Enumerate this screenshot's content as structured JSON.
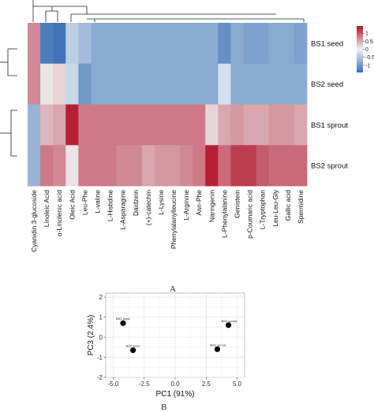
{
  "panel_labels": {
    "a": "A",
    "b": "B"
  },
  "chart_data": [
    {
      "type": "heatmap",
      "rows": [
        "BS1 seed",
        "BS2 seed",
        "BS1 sprout",
        "BS2 sprout"
      ],
      "columns": [
        "Cyanidin 3-glucoside",
        "Linoleic Acid",
        "α-Linolenic acid",
        "Oleic Acid",
        "Leu-Phe",
        "L-valine",
        "L-Histidine",
        "L-Asparagine",
        "Daidzein",
        "(+)-catechin",
        "L-Lysine",
        "Phenylalanylleucine",
        "L-Arginine",
        "Asn-Phe",
        "Naringenin",
        "L-Phenylalanine",
        "Genistein",
        "p-Coumaric acid",
        "L-Tryptophan",
        "Leu-Leu-Gly",
        "Gallic acid",
        "Spermidine"
      ],
      "values": [
        [
          0.7,
          -1.3,
          -1.4,
          -0.4,
          -0.6,
          -0.8,
          -0.8,
          -0.8,
          -0.8,
          -0.8,
          -0.8,
          -0.8,
          -0.8,
          -0.8,
          -0.8,
          -1.1,
          -0.8,
          -0.9,
          -0.9,
          -0.8,
          -0.8,
          -0.9
        ],
        [
          0.7,
          0.1,
          0.2,
          -0.3,
          -1.0,
          -0.8,
          -0.8,
          -0.8,
          -0.8,
          -0.8,
          -0.8,
          -0.8,
          -0.8,
          -0.8,
          -0.8,
          -0.2,
          -0.8,
          -0.8,
          -0.8,
          -0.8,
          -0.8,
          -0.8
        ],
        [
          -0.7,
          0.4,
          0.5,
          1.4,
          0.8,
          0.8,
          0.8,
          0.8,
          0.8,
          0.8,
          0.8,
          0.8,
          0.8,
          0.8,
          0.2,
          0.5,
          0.6,
          0.5,
          0.5,
          0.6,
          0.6,
          0.5
        ],
        [
          -0.7,
          0.8,
          0.7,
          0.1,
          0.8,
          0.8,
          0.8,
          0.7,
          0.7,
          0.5,
          0.6,
          0.6,
          0.7,
          0.8,
          1.4,
          0.9,
          1.2,
          1.2,
          1.0,
          0.9,
          0.9,
          0.9
        ]
      ],
      "legend_ticks": [
        1,
        0.5,
        0,
        -0.5,
        -1
      ],
      "legend_ticks_text": [
        "1",
        "0.5",
        "0",
        "-0.5",
        "-1"
      ],
      "vmin": -1.45,
      "vmax": 1.45,
      "colors": {
        "low": "#3b6fb4",
        "mid": "#eef2f5",
        "high": "#b2182b"
      },
      "dendrograms": "rows and columns clustered"
    },
    {
      "type": "scatter",
      "points": [
        {
          "label": "BS1 seed",
          "x": -4.2,
          "y": 0.7
        },
        {
          "label": "BS2 seed",
          "x": -3.4,
          "y": -0.65
        },
        {
          "label": "BS1 sprout",
          "x": 3.4,
          "y": -0.6
        },
        {
          "label": "BS2 sprout",
          "x": 4.3,
          "y": 0.6
        }
      ],
      "xlabel": "PC1 (91%)",
      "ylabel": "PC3 (2.4%)",
      "xlim": [
        -5.6,
        5.6
      ],
      "ylim": [
        -2.0,
        2.2
      ],
      "xticks": [
        -5.0,
        -2.5,
        0.0,
        2.5,
        5.0
      ],
      "xticks_text": [
        "-5.0",
        "-2.5",
        "0.0",
        "2.5",
        "5.0"
      ],
      "yticks": [
        -2,
        -1,
        0,
        1,
        2
      ],
      "yticks_text": [
        "-2",
        "-1",
        "0",
        "1",
        "2"
      ],
      "grid": true,
      "point_color": "#000000"
    }
  ]
}
